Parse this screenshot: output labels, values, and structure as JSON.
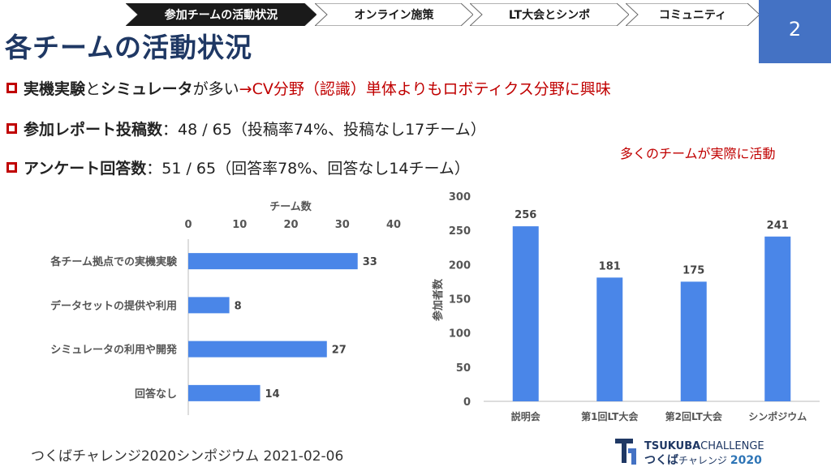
{
  "breadcrumb": [
    {
      "label": "参加チームの活動状況",
      "active": true
    },
    {
      "label": "オンライン施策",
      "active": false
    },
    {
      "label": "LT大会とシンポ",
      "active": false
    },
    {
      "label": "コミュニティ",
      "active": false
    }
  ],
  "title": "各チームの活動状況",
  "page_number": "2",
  "bullets": [
    {
      "bold1": "実機実験",
      "mid1": "と",
      "bold2": "シミュレータ",
      "mid2": "が多い",
      "red": "→CV分野（認識）単体よりもロボティクス分野に興味"
    },
    {
      "bold": "参加レポート投稿数",
      "rest": "：48 / 65（投稿率74%、投稿なし17チーム）"
    },
    {
      "bold": "アンケート回答数",
      "rest": "：51 / 65（回答率78%、回答なし14チーム）"
    }
  ],
  "note": "多くのチームが実際に活動",
  "footer": "つくばチャレンジ2020シンポジウム 2021-02-06",
  "logo": {
    "line1a": "TSUKUBA",
    "line1b": "CHALLENGE",
    "line2a": "つくば",
    "line2b": "チャレンジ",
    "line2c": "2020"
  },
  "colors": {
    "bar": "#4a86e8",
    "title": "#1f3864",
    "accent": "#4472c4",
    "emphasis": "#c00000"
  },
  "chart_data": [
    {
      "type": "bar",
      "orientation": "horizontal",
      "xlabel": "チーム数",
      "xlim": [
        0,
        40
      ],
      "xticks": [
        0,
        10,
        20,
        30,
        40
      ],
      "categories": [
        "各チーム拠点での実機実験",
        "データセットの提供や利用",
        "シミュレータの利用や開発",
        "回答なし"
      ],
      "values": [
        33,
        8,
        27,
        14
      ],
      "data_labels": [
        "33",
        "8",
        "27",
        "14"
      ]
    },
    {
      "type": "bar",
      "ylabel": "参加者数",
      "ylim": [
        0,
        300
      ],
      "yticks": [
        0,
        50,
        100,
        150,
        200,
        250,
        300
      ],
      "categories": [
        "説明会",
        "第1回LT大会",
        "第2回LT大会",
        "シンポジウム"
      ],
      "values": [
        256,
        181,
        175,
        241
      ],
      "data_labels": [
        "256",
        "181",
        "175",
        "241"
      ]
    }
  ]
}
